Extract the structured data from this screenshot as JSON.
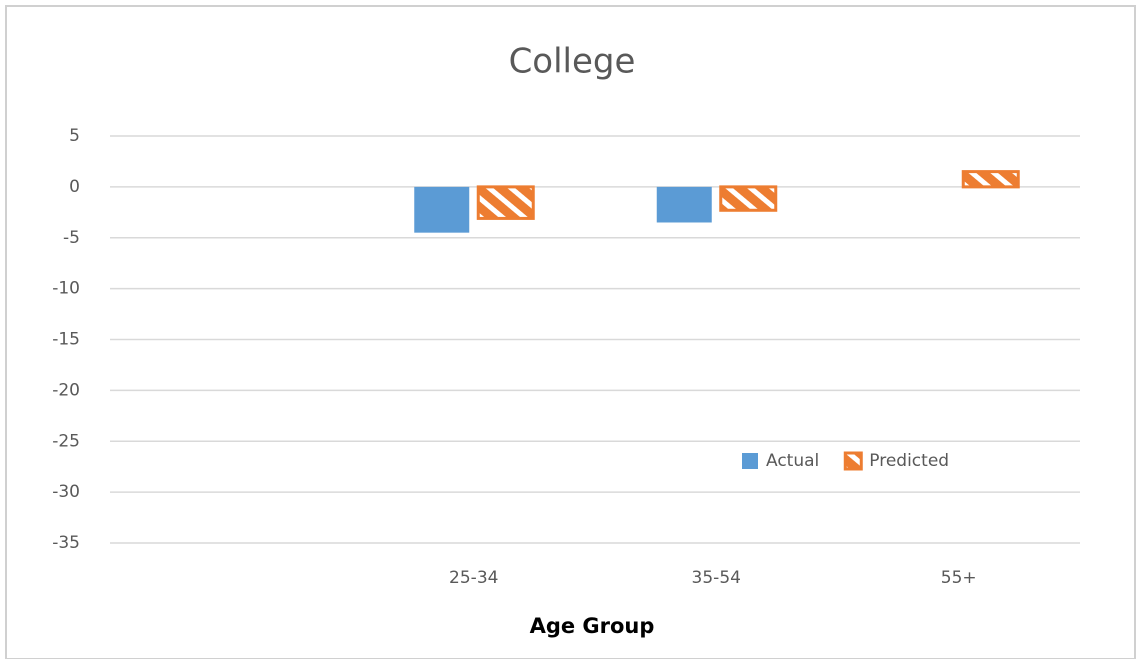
{
  "chart_data": {
    "type": "bar",
    "title": "College",
    "x_label": "Age Group",
    "categories": [
      null,
      "25-34",
      "35-54",
      "55+"
    ],
    "series": [
      {
        "name": "Actual",
        "color": "#5b9bd5",
        "values": [
          null,
          -4.5,
          -3.5,
          null
        ]
      },
      {
        "name": "Predicted",
        "color": "#ed7d31",
        "values": [
          null,
          -3.1,
          -2.3,
          1.5
        ]
      }
    ],
    "ylim": [
      -35,
      5
    ],
    "yticks": [
      5,
      0,
      -5,
      -10,
      -15,
      -20,
      -25,
      -30,
      -35
    ],
    "grid": true,
    "legend": "lower-right"
  }
}
